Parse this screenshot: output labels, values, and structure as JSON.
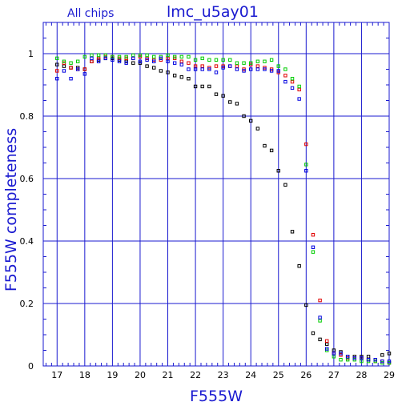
{
  "chart_data": {
    "type": "scatter",
    "title": "lmc_u5ay01",
    "subtitle": "All chips",
    "xlabel": "F555W",
    "ylabel": "F555W completeness",
    "xlim": [
      16.5,
      29
    ],
    "ylim": [
      0,
      1.1
    ],
    "xticks": [
      "17",
      "18",
      "19",
      "20",
      "21",
      "22",
      "23",
      "24",
      "25",
      "26",
      "27",
      "28",
      "29"
    ],
    "yticks": [
      "0",
      "0.2",
      "0.4",
      "0.6",
      "0.8",
      "1"
    ],
    "grid": true,
    "colors": {
      "axes": "#1a1ad0",
      "grid": "#1a1ad0",
      "text": "#1a1ad0",
      "tick_text": "#000000"
    },
    "series": [
      {
        "color": "#000000",
        "x": [
          17,
          17.25,
          17.5,
          17.75,
          18,
          18.25,
          18.5,
          18.75,
          19,
          19.25,
          19.5,
          19.75,
          20,
          20.25,
          20.5,
          20.75,
          21,
          21.25,
          21.5,
          21.75,
          22,
          22.25,
          22.5,
          22.75,
          23,
          23.25,
          23.5,
          23.75,
          24,
          24.25,
          24.5,
          24.75,
          25,
          25.25,
          25.5,
          25.75,
          26,
          26.25,
          26.5,
          26.75,
          27,
          27.25,
          27.5,
          27.75,
          28,
          28.25,
          28.5,
          28.75,
          29
        ],
        "y": [
          0.965,
          0.96,
          0.955,
          0.955,
          0.95,
          0.975,
          0.98,
          0.985,
          0.985,
          0.98,
          0.975,
          0.97,
          0.97,
          0.96,
          0.955,
          0.945,
          0.94,
          0.93,
          0.925,
          0.92,
          0.895,
          0.895,
          0.895,
          0.87,
          0.865,
          0.845,
          0.84,
          0.8,
          0.785,
          0.76,
          0.705,
          0.69,
          0.625,
          0.58,
          0.43,
          0.32,
          0.195,
          0.105,
          0.085,
          0.07,
          0.05,
          0.045,
          0.03,
          0.03,
          0.03,
          0.03,
          0.02,
          0.035,
          0.04
        ]
      },
      {
        "color": "#e00000",
        "x": [
          17,
          17.25,
          17.5,
          17.75,
          18,
          18.25,
          18.5,
          18.75,
          19,
          19.25,
          19.5,
          19.75,
          20,
          20.25,
          20.5,
          20.75,
          21,
          21.25,
          21.5,
          21.75,
          22,
          22.25,
          22.5,
          22.75,
          23,
          23.25,
          23.5,
          23.75,
          24,
          24.25,
          24.5,
          24.75,
          25,
          25.25,
          25.5,
          25.75,
          26,
          26.25,
          26.5,
          26.75,
          27,
          27.25,
          27.5,
          27.75,
          28,
          28.25,
          28.5,
          28.75,
          29
        ],
        "y": [
          0.945,
          0.97,
          0.955,
          0.95,
          0.95,
          0.975,
          0.985,
          0.99,
          0.99,
          0.985,
          0.985,
          0.985,
          0.99,
          0.985,
          0.98,
          0.98,
          0.985,
          0.985,
          0.975,
          0.97,
          0.96,
          0.96,
          0.955,
          0.96,
          0.96,
          0.96,
          0.96,
          0.95,
          0.965,
          0.96,
          0.955,
          0.95,
          0.94,
          0.93,
          0.91,
          0.885,
          0.71,
          0.42,
          0.21,
          0.08,
          0.04,
          0.035,
          0.025,
          0.025,
          0.025,
          0.02,
          0.015,
          0.015,
          0.01
        ]
      },
      {
        "color": "#00cc00",
        "x": [
          17,
          17.25,
          17.5,
          17.75,
          18,
          18.25,
          18.5,
          18.75,
          19,
          19.25,
          19.5,
          19.75,
          20,
          20.25,
          20.5,
          20.75,
          21,
          21.25,
          21.5,
          21.75,
          22,
          22.25,
          22.5,
          22.75,
          23,
          23.25,
          23.5,
          23.75,
          24,
          24.25,
          24.5,
          24.75,
          25,
          25.25,
          25.5,
          25.75,
          26,
          26.25,
          26.5,
          26.75,
          27,
          27.25,
          27.5,
          27.75,
          28,
          28.25,
          28.5,
          28.75,
          29
        ],
        "y": [
          0.985,
          0.975,
          0.97,
          0.975,
          0.99,
          0.995,
          0.995,
          0.995,
          0.99,
          0.99,
          0.99,
          0.995,
          0.995,
          0.995,
          0.99,
          0.99,
          0.995,
          0.99,
          0.99,
          0.99,
          0.98,
          0.985,
          0.98,
          0.98,
          0.98,
          0.98,
          0.97,
          0.97,
          0.97,
          0.975,
          0.975,
          0.98,
          0.96,
          0.95,
          0.92,
          0.895,
          0.645,
          0.365,
          0.145,
          0.05,
          0.03,
          0.02,
          0.02,
          0.02,
          0.015,
          0.015,
          0.015,
          0.01,
          0.01
        ]
      },
      {
        "color": "#0000e0",
        "x": [
          17,
          17.25,
          17.5,
          17.75,
          18,
          18.25,
          18.5,
          18.75,
          19,
          19.25,
          19.5,
          19.75,
          20,
          20.25,
          20.5,
          20.75,
          21,
          21.25,
          21.5,
          21.75,
          22,
          22.25,
          22.5,
          22.75,
          23,
          23.25,
          23.5,
          23.75,
          24,
          24.25,
          24.5,
          24.75,
          25,
          25.25,
          25.5,
          25.75,
          26,
          26.25,
          26.5,
          26.75,
          27,
          27.25,
          27.5,
          27.75,
          28,
          28.25,
          28.5,
          28.75,
          29
        ],
        "y": [
          0.92,
          0.945,
          0.92,
          0.95,
          0.935,
          0.985,
          0.975,
          0.985,
          0.98,
          0.975,
          0.97,
          0.985,
          0.975,
          0.98,
          0.975,
          0.985,
          0.975,
          0.97,
          0.965,
          0.95,
          0.95,
          0.95,
          0.95,
          0.94,
          0.955,
          0.96,
          0.95,
          0.945,
          0.95,
          0.95,
          0.95,
          0.945,
          0.945,
          0.91,
          0.89,
          0.855,
          0.625,
          0.38,
          0.155,
          0.055,
          0.04,
          0.04,
          0.03,
          0.025,
          0.025,
          0.02,
          0.02,
          0.015,
          0.015
        ]
      }
    ]
  }
}
